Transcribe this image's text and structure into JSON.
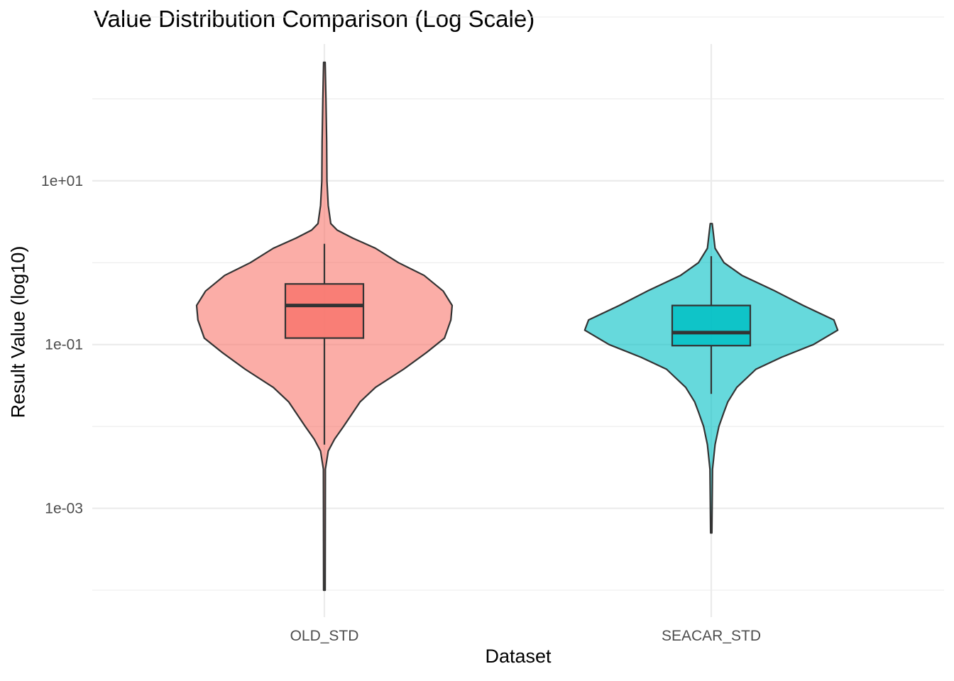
{
  "chart_data": {
    "type": "violin",
    "title": "Value Distribution Comparison (Log Scale)",
    "xlabel": "Dataset",
    "ylabel": "Result Value (log10)",
    "y_scale": "log10",
    "ylim": [
      0.0001,
      1000
    ],
    "y_ticks": [
      {
        "value": 10,
        "label": "1e+01"
      },
      {
        "value": 0.1,
        "label": "1e-01"
      },
      {
        "value": 0.001,
        "label": "1e-03"
      }
    ],
    "grid": true,
    "legend": "none",
    "categories": [
      "OLD_STD",
      "SEACAR_STD"
    ],
    "series": [
      {
        "category": "OLD_STD",
        "color": "#F8766D",
        "min": 0.0001,
        "max": 280,
        "box": {
          "q1": 0.12,
          "median": 0.3,
          "q3": 0.55,
          "whisker_low": 0.006,
          "whisker_high": 1.7
        },
        "density": [
          [
            0.0001,
            0.006
          ],
          [
            0.003,
            0.008
          ],
          [
            0.005,
            0.03
          ],
          [
            0.007,
            0.08
          ],
          [
            0.01,
            0.15
          ],
          [
            0.02,
            0.28
          ],
          [
            0.03,
            0.4
          ],
          [
            0.05,
            0.62
          ],
          [
            0.08,
            0.8
          ],
          [
            0.12,
            0.94
          ],
          [
            0.2,
            0.99
          ],
          [
            0.3,
            1.0
          ],
          [
            0.45,
            0.93
          ],
          [
            0.7,
            0.78
          ],
          [
            1.0,
            0.58
          ],
          [
            1.5,
            0.4
          ],
          [
            2.0,
            0.22
          ],
          [
            2.5,
            0.1
          ],
          [
            3.0,
            0.05
          ],
          [
            5.0,
            0.03
          ],
          [
            10,
            0.02
          ],
          [
            30,
            0.018
          ],
          [
            100,
            0.012
          ],
          [
            280,
            0.006
          ]
        ]
      },
      {
        "category": "SEACAR_STD",
        "color": "#00BFC4",
        "min": 0.0005,
        "max": 3.0,
        "box": {
          "q1": 0.097,
          "median": 0.14,
          "q3": 0.3,
          "whisker_low": 0.025,
          "whisker_high": 1.2
        },
        "density": [
          [
            0.0005,
            0.005
          ],
          [
            0.003,
            0.01
          ],
          [
            0.006,
            0.03
          ],
          [
            0.01,
            0.06
          ],
          [
            0.015,
            0.1
          ],
          [
            0.02,
            0.13
          ],
          [
            0.03,
            0.2
          ],
          [
            0.05,
            0.35
          ],
          [
            0.07,
            0.55
          ],
          [
            0.1,
            0.8
          ],
          [
            0.15,
            0.99
          ],
          [
            0.2,
            0.96
          ],
          [
            0.3,
            0.72
          ],
          [
            0.45,
            0.5
          ],
          [
            0.7,
            0.24
          ],
          [
            1.0,
            0.1
          ],
          [
            1.5,
            0.03
          ],
          [
            3.0,
            0.008
          ]
        ]
      }
    ]
  }
}
